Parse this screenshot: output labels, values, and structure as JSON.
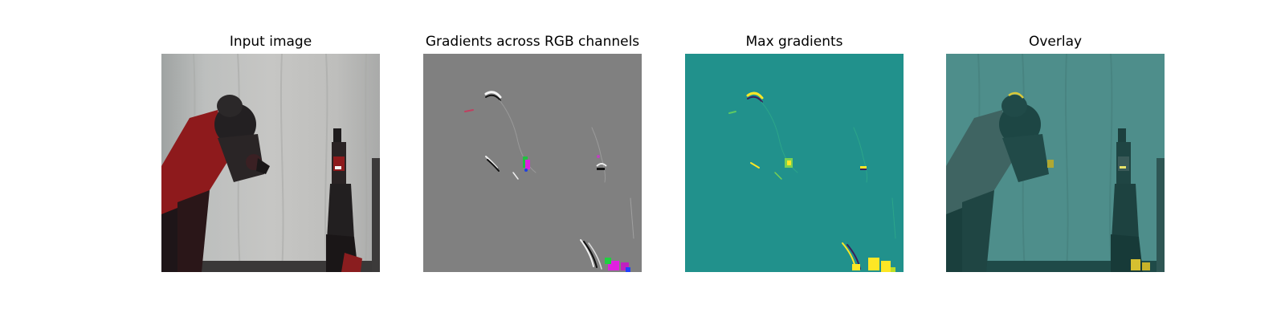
{
  "panels": [
    {
      "title": "Input image"
    },
    {
      "title": "Gradients across RGB channels"
    },
    {
      "title": "Max gradients"
    },
    {
      "title": "Overlay"
    }
  ],
  "colors": {
    "background": "#ffffff",
    "gradient_gray": "#808080",
    "max_gradient_teal": "#21918c",
    "highlight_yellow": "#fde725",
    "highlight_magenta": "#e020e0",
    "robot_red": "#8e1a1c",
    "robot_dark": "#1e1518",
    "backdrop_gray": "#b9b9b7"
  }
}
